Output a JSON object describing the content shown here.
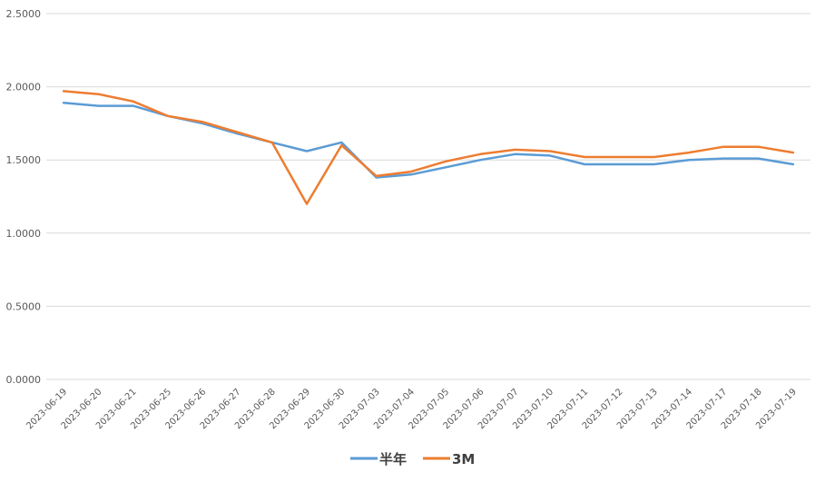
{
  "chart_data": {
    "type": "line",
    "title": "",
    "xlabel": "",
    "ylabel": "",
    "ylim": [
      0,
      2.5
    ],
    "yticks": [
      "0.0000",
      "0.5000",
      "1.0000",
      "1.5000",
      "2.0000",
      "2.5000"
    ],
    "ytick_values": [
      0,
      0.5,
      1,
      1.5,
      2,
      2.5
    ],
    "grid": true,
    "legend_position": "bottom",
    "categories": [
      "2023-06-19",
      "2023-06-20",
      "2023-06-21",
      "2023-06-25",
      "2023-06-26",
      "2023-06-27",
      "2023-06-28",
      "2023-06-29",
      "2023-06-30",
      "2023-07-03",
      "2023-07-04",
      "2023-07-05",
      "2023-07-06",
      "2023-07-07",
      "2023-07-10",
      "2023-07-11",
      "2023-07-12",
      "2023-07-13",
      "2023-07-14",
      "2023-07-17",
      "2023-07-18",
      "2023-07-19"
    ],
    "series": [
      {
        "name": "半年",
        "color": "#5B9BD5",
        "values": [
          1.89,
          1.87,
          1.87,
          1.8,
          1.75,
          1.68,
          1.62,
          1.56,
          1.62,
          1.38,
          1.4,
          1.45,
          1.5,
          1.54,
          1.53,
          1.47,
          1.47,
          1.47,
          1.5,
          1.51,
          1.51,
          1.47
        ]
      },
      {
        "name": "3M",
        "color": "#ED7D31",
        "values": [
          1.97,
          1.95,
          1.9,
          1.8,
          1.76,
          1.69,
          1.62,
          1.2,
          1.6,
          1.39,
          1.42,
          1.49,
          1.54,
          1.57,
          1.56,
          1.52,
          1.52,
          1.52,
          1.55,
          1.59,
          1.59,
          1.55
        ]
      }
    ]
  }
}
